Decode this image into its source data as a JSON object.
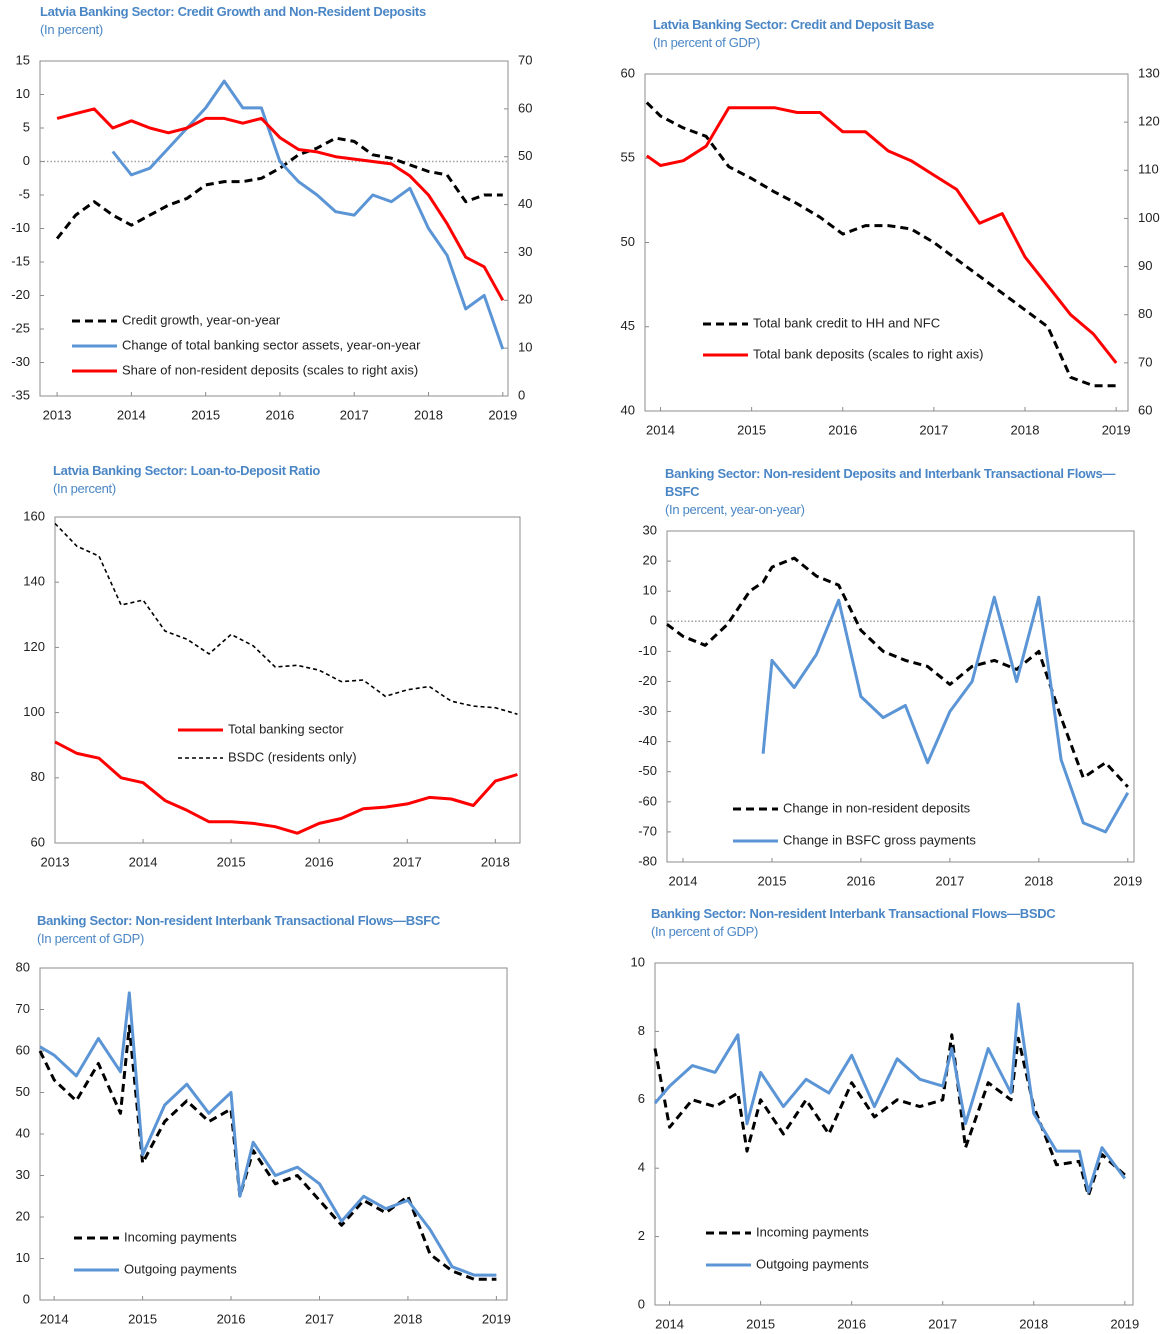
{
  "chart_data": [
    {
      "type": "line",
      "title": "Latvia Banking Sector: Credit Growth and Non-Resident Deposits",
      "subtitle": "(In percent)",
      "x": [
        2013,
        2013.25,
        2013.5,
        2013.75,
        2014,
        2014.25,
        2014.5,
        2014.75,
        2015,
        2015.25,
        2015.5,
        2015.75,
        2016,
        2016.25,
        2016.5,
        2016.75,
        2017,
        2017.25,
        2017.5,
        2017.75,
        2018,
        2018.25,
        2018.5,
        2018.75,
        2019
      ],
      "xlim": [
        2012.77,
        2019.07
      ],
      "xticks": [
        2013,
        2014,
        2015,
        2016,
        2017,
        2018,
        2019
      ],
      "ylim": [
        -35,
        15
      ],
      "yticks": [
        -35,
        -30,
        -25,
        -20,
        -15,
        -10,
        -5,
        0,
        5,
        10,
        15
      ],
      "y2lim": [
        0,
        70
      ],
      "y2ticks": [
        0,
        10,
        20,
        30,
        40,
        50,
        60,
        70
      ],
      "zero_line": true,
      "series": [
        {
          "name": "Credit growth, year-on-year",
          "color": "#000000",
          "style": "dashed",
          "values": [
            -11.5,
            -8,
            -6,
            -8,
            -9.5,
            -8,
            -6.5,
            -5.5,
            -3.5,
            -3,
            -3,
            -2.5,
            -1,
            1,
            2,
            3.5,
            3,
            1,
            0.5,
            -0.5,
            -1.5,
            -2,
            -6,
            -5,
            -5
          ]
        },
        {
          "name": "Change of total banking sector assets, year-on-year",
          "color": "#5b95d6",
          "style": "solid",
          "values": [
            null,
            null,
            null,
            1.5,
            -2,
            -1,
            2,
            5,
            8,
            12,
            8,
            8,
            0,
            -3,
            -5,
            -7.5,
            -8,
            -5,
            -6,
            -4,
            -10,
            -14,
            -22,
            -20,
            -28
          ]
        },
        {
          "name": "Share of non-resident deposits (scales to right axis)",
          "color": "#ff0000",
          "style": "solid",
          "axis": "y2",
          "values": [
            58,
            59,
            60,
            56,
            57.5,
            56,
            55,
            56,
            58,
            58,
            57,
            58,
            54,
            51.5,
            51,
            50,
            49.5,
            49,
            48.5,
            46,
            42,
            36,
            29,
            27,
            20
          ]
        }
      ]
    },
    {
      "type": "line",
      "title": "Latvia Banking Sector: Credit and Deposit Base",
      "subtitle": "(In percent of GDP)",
      "x": [
        2013.85,
        2014,
        2014.25,
        2014.5,
        2014.75,
        2015,
        2015.25,
        2015.5,
        2015.75,
        2016,
        2016.25,
        2016.5,
        2016.75,
        2017,
        2017.25,
        2017.5,
        2017.75,
        2018,
        2018.25,
        2018.5,
        2018.75,
        2019
      ],
      "xlim": [
        2013.83,
        2019.13
      ],
      "xticks": [
        2014,
        2015,
        2016,
        2017,
        2018,
        2019
      ],
      "ylim": [
        40,
        60
      ],
      "yticks": [
        40,
        45,
        50,
        55,
        60
      ],
      "y2lim": [
        60,
        130
      ],
      "y2ticks": [
        60,
        70,
        80,
        90,
        100,
        110,
        120,
        130
      ],
      "series": [
        {
          "name": "Total bank credit to HH and NFC",
          "color": "#000000",
          "style": "dashed",
          "values": [
            58.3,
            57.5,
            56.8,
            56.3,
            54.5,
            53.8,
            53,
            52.3,
            51.5,
            50.5,
            51,
            51,
            50.8,
            50,
            49,
            48,
            47,
            46,
            45,
            42,
            41.5,
            41.5
          ]
        },
        {
          "name": "Total bank deposits (scales to right axis)",
          "color": "#ff0000",
          "style": "solid",
          "axis": "y2",
          "values": [
            113,
            111,
            112,
            115,
            123,
            123,
            123,
            122,
            122,
            118,
            118,
            114,
            112,
            109,
            106,
            99,
            101,
            92,
            86,
            80,
            76,
            70
          ]
        }
      ]
    },
    {
      "type": "line",
      "title": "Latvia Banking Sector: Loan-to-Deposit Ratio",
      "subtitle": "(In percent)",
      "x": [
        2013,
        2013.25,
        2013.5,
        2013.75,
        2014,
        2014.25,
        2014.5,
        2014.75,
        2015,
        2015.25,
        2015.5,
        2015.75,
        2016,
        2016.25,
        2016.5,
        2016.75,
        2017,
        2017.25,
        2017.5,
        2017.75,
        2018,
        2018.25
      ],
      "xlim": [
        2013,
        2018.28
      ],
      "xticks": [
        2013,
        2014,
        2015,
        2016,
        2017,
        2018
      ],
      "ylim": [
        60,
        160
      ],
      "yticks": [
        60,
        80,
        100,
        120,
        140,
        160
      ],
      "series": [
        {
          "name": "Total banking sector",
          "color": "#ff0000",
          "style": "solid",
          "values": [
            91,
            87.5,
            86,
            80,
            78.5,
            73,
            70,
            66.5,
            66.5,
            66,
            65,
            63,
            66,
            67.5,
            70.5,
            71,
            72,
            74,
            73.5,
            71.5,
            79,
            81
          ]
        },
        {
          "name": "BSDC (residents only)",
          "color": "#000000",
          "style": "dotted",
          "values": [
            158,
            151,
            148,
            133,
            134.5,
            125,
            122.5,
            118,
            124,
            120.5,
            114,
            114.5,
            113,
            109.5,
            110,
            105,
            107,
            108,
            103.5,
            102,
            101.5,
            99.5
          ]
        }
      ]
    },
    {
      "type": "line",
      "title": "Banking Sector: Non-resident Deposits and Interbank Transactional Flows—BSFC",
      "subtitle": "(In percent, year-on-year)",
      "x": [
        2013.82,
        2014,
        2014.25,
        2014.5,
        2014.75,
        2014.9,
        2015,
        2015.25,
        2015.5,
        2015.75,
        2016,
        2016.25,
        2016.5,
        2016.75,
        2017,
        2017.25,
        2017.5,
        2017.75,
        2018,
        2018.25,
        2018.5,
        2018.75,
        2019
      ],
      "xlim": [
        2013.82,
        2019.07
      ],
      "xticks": [
        2014,
        2015,
        2016,
        2017,
        2018,
        2019
      ],
      "ylim": [
        -80,
        30
      ],
      "yticks": [
        -80,
        -70,
        -60,
        -50,
        -40,
        -30,
        -20,
        -10,
        0,
        10,
        20,
        30
      ],
      "zero_line": true,
      "series": [
        {
          "name": "Change in non-resident deposits",
          "color": "#000000",
          "style": "dashed",
          "values": [
            -1,
            -5,
            -8,
            -1,
            10,
            13,
            18,
            21,
            15,
            12,
            -3,
            -10,
            -13,
            -15,
            -21,
            -15,
            -13,
            -16,
            -10,
            -32,
            -52,
            -47,
            -55
          ]
        },
        {
          "name": "Change in BSFC gross payments",
          "color": "#5b95d6",
          "style": "solid",
          "values": [
            null,
            null,
            null,
            null,
            null,
            -44,
            -13,
            -22,
            -11,
            7,
            -25,
            -32,
            -28,
            -47,
            -30,
            -20,
            8,
            -20,
            8,
            -46,
            -67,
            -70,
            -57
          ]
        }
      ]
    },
    {
      "type": "line",
      "title": "Banking Sector: Non-resident Interbank Transactional Flows—BSFC",
      "subtitle": "(In percent of GDP)",
      "x": [
        2013.84,
        2014,
        2014.25,
        2014.5,
        2014.75,
        2014.85,
        2015,
        2015.25,
        2015.5,
        2015.75,
        2016,
        2016.1,
        2016.25,
        2016.5,
        2016.75,
        2017,
        2017.25,
        2017.5,
        2017.75,
        2018,
        2018.25,
        2018.5,
        2018.75,
        2019
      ],
      "xlim": [
        2013.84,
        2019.12
      ],
      "xticks": [
        2014,
        2015,
        2016,
        2017,
        2018,
        2019
      ],
      "ylim": [
        0,
        80
      ],
      "yticks": [
        0,
        10,
        20,
        30,
        40,
        50,
        60,
        70,
        80
      ],
      "series": [
        {
          "name": "Incoming payments",
          "color": "#000000",
          "style": "dashed",
          "values": [
            60,
            53,
            48,
            57,
            45,
            66,
            33,
            43,
            48,
            43,
            46,
            25,
            36,
            28,
            30,
            24,
            18,
            24,
            21,
            25,
            11,
            7,
            5,
            5
          ]
        },
        {
          "name": "Outgoing payments",
          "color": "#5b95d6",
          "style": "solid",
          "values": [
            61,
            59,
            54,
            63,
            55,
            74,
            35,
            47,
            52,
            45,
            50,
            25,
            38,
            30,
            32,
            28,
            19,
            25,
            22,
            24,
            17,
            8,
            6,
            6
          ]
        }
      ]
    },
    {
      "type": "line",
      "title": "Banking Sector: Non-resident Interbank Transactional Flows—BSDC",
      "subtitle": "(In percent of GDP)",
      "x": [
        2013.84,
        2014,
        2014.25,
        2014.5,
        2014.75,
        2014.85,
        2015,
        2015.25,
        2015.5,
        2015.75,
        2016,
        2016.25,
        2016.5,
        2016.75,
        2017,
        2017.1,
        2017.25,
        2017.5,
        2017.75,
        2017.83,
        2018,
        2018.25,
        2018.5,
        2018.6,
        2018.75,
        2019
      ],
      "xlim": [
        2013.84,
        2019.09
      ],
      "xticks": [
        2014,
        2015,
        2016,
        2017,
        2018,
        2019
      ],
      "ylim": [
        0,
        10
      ],
      "yticks": [
        0,
        2,
        4,
        6,
        8,
        10
      ],
      "series": [
        {
          "name": "Incoming payments",
          "color": "#000000",
          "style": "dashed",
          "values": [
            7.5,
            5.2,
            6,
            5.8,
            6.2,
            4.5,
            6,
            5,
            6,
            5,
            6.5,
            5.5,
            6,
            5.8,
            6,
            7.9,
            4.6,
            6.5,
            6,
            7.8,
            5.8,
            4.1,
            4.2,
            3.2,
            4.4,
            3.8
          ]
        },
        {
          "name": "Outgoing payments",
          "color": "#5b95d6",
          "style": "solid",
          "values": [
            5.9,
            6.4,
            7,
            6.8,
            7.9,
            5.3,
            6.8,
            5.8,
            6.6,
            6.2,
            7.3,
            5.8,
            7.2,
            6.6,
            6.4,
            7.5,
            5.3,
            7.5,
            6.2,
            8.8,
            5.6,
            4.5,
            4.5,
            3.3,
            4.6,
            3.7
          ]
        }
      ]
    }
  ]
}
